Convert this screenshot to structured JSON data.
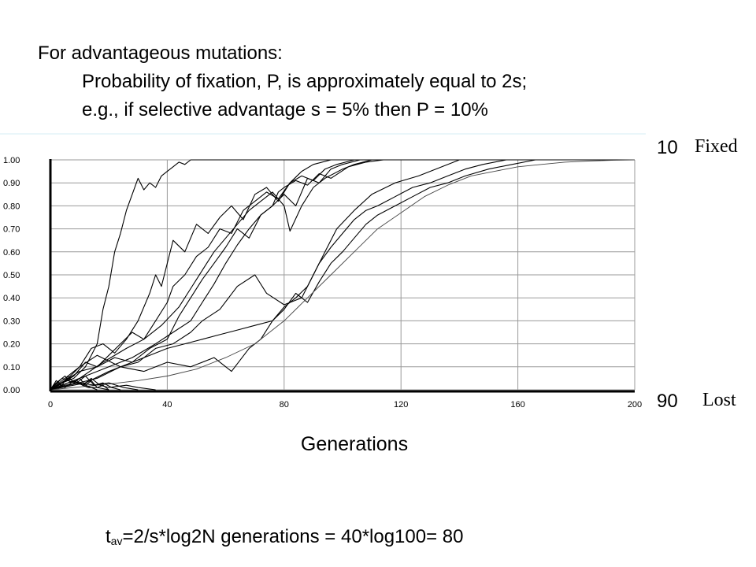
{
  "heading": {
    "line1": "For advantageous  mutations:",
    "line2": "Probability of fixation, P, is approximately equal to 2s;",
    "line3": "e.g., if selective advantage  s = 5% then P = 10%"
  },
  "formula": {
    "t": "t",
    "sub": "av",
    "rest": "=2/s*log2N generations = 40*log100= 80"
  },
  "chart_data": {
    "type": "line",
    "xlabel": "Generations",
    "ylabel": "",
    "xlim": [
      0,
      200
    ],
    "ylim": [
      0,
      1
    ],
    "x_ticks": [
      "0",
      "40",
      "80",
      "120",
      "160",
      "200"
    ],
    "y_ticks": [
      "0.00",
      "0.10",
      "0.20",
      "0.30",
      "0.40",
      "0.50",
      "0.60",
      "0.70",
      "0.80",
      "0.90",
      "1.00"
    ],
    "grid": true,
    "annotations": [
      {
        "count": "10",
        "label": "Fixed"
      },
      {
        "count": "90",
        "label": "Lost"
      }
    ],
    "series": [
      {
        "x": [
          0,
          4,
          8,
          12,
          16,
          18,
          20,
          22,
          24,
          26,
          28,
          30,
          32,
          34,
          36,
          38,
          40,
          42,
          44,
          46,
          48,
          52,
          60,
          80,
          100,
          140,
          200
        ],
        "y": [
          0,
          0.03,
          0.05,
          0.1,
          0.2,
          0.35,
          0.45,
          0.6,
          0.68,
          0.78,
          0.85,
          0.92,
          0.87,
          0.9,
          0.88,
          0.93,
          0.95,
          0.97,
          0.99,
          0.98,
          1,
          1,
          1,
          1,
          1,
          1,
          1
        ]
      },
      {
        "x": [
          0,
          6,
          10,
          14,
          18,
          22,
          26,
          30,
          34,
          36,
          38,
          40,
          42,
          46,
          50,
          54,
          58,
          62,
          66,
          70,
          74,
          78,
          82,
          86,
          90,
          94,
          98,
          104,
          110,
          200
        ],
        "y": [
          0,
          0.05,
          0.1,
          0.18,
          0.2,
          0.16,
          0.22,
          0.3,
          0.42,
          0.5,
          0.45,
          0.55,
          0.65,
          0.6,
          0.72,
          0.68,
          0.75,
          0.8,
          0.74,
          0.85,
          0.88,
          0.82,
          0.9,
          0.93,
          0.91,
          0.96,
          0.98,
          1,
          1,
          1
        ]
      },
      {
        "x": [
          0,
          8,
          12,
          16,
          20,
          24,
          28,
          32,
          36,
          40,
          42,
          46,
          50,
          54,
          58,
          62,
          66,
          70,
          74,
          78,
          82,
          86,
          90,
          96,
          100,
          200
        ],
        "y": [
          0,
          0.06,
          0.12,
          0.1,
          0.15,
          0.2,
          0.25,
          0.22,
          0.3,
          0.38,
          0.45,
          0.5,
          0.58,
          0.62,
          0.7,
          0.68,
          0.78,
          0.82,
          0.86,
          0.83,
          0.9,
          0.95,
          0.98,
          1,
          1,
          1
        ]
      },
      {
        "x": [
          0,
          10,
          16,
          22,
          28,
          34,
          40,
          44,
          48,
          52,
          56,
          60,
          64,
          68,
          72,
          76,
          80,
          84,
          88,
          92,
          96,
          100,
          106,
          200
        ],
        "y": [
          0,
          0.08,
          0.1,
          0.14,
          0.12,
          0.18,
          0.22,
          0.32,
          0.4,
          0.48,
          0.55,
          0.62,
          0.7,
          0.66,
          0.76,
          0.8,
          0.85,
          0.8,
          0.92,
          0.9,
          0.96,
          0.98,
          1,
          1
        ]
      },
      {
        "x": [
          0,
          10,
          18,
          26,
          32,
          38,
          44,
          48,
          52,
          56,
          60,
          64,
          68,
          72,
          76,
          80,
          82,
          86,
          90,
          94,
          100,
          104,
          110,
          200
        ],
        "y": [
          0,
          0.05,
          0.12,
          0.18,
          0.22,
          0.28,
          0.36,
          0.44,
          0.52,
          0.6,
          0.66,
          0.72,
          0.78,
          0.82,
          0.86,
          0.8,
          0.69,
          0.8,
          0.88,
          0.92,
          0.96,
          0.98,
          1,
          1
        ]
      },
      {
        "x": [
          0,
          12,
          20,
          28,
          36,
          42,
          48,
          52,
          56,
          60,
          64,
          68,
          72,
          76,
          78,
          80,
          84,
          88,
          92,
          96,
          102,
          108,
          114,
          200
        ],
        "y": [
          0,
          0.06,
          0.1,
          0.14,
          0.2,
          0.25,
          0.3,
          0.38,
          0.46,
          0.55,
          0.63,
          0.7,
          0.76,
          0.8,
          0.86,
          0.88,
          0.91,
          0.89,
          0.94,
          0.92,
          0.97,
          0.99,
          1,
          1
        ]
      },
      {
        "x": [
          0,
          10,
          16,
          24,
          30,
          36,
          42,
          48,
          52,
          58,
          64,
          70,
          74,
          80,
          86,
          90,
          94,
          98,
          104,
          110,
          118,
          126,
          134,
          140,
          200
        ],
        "y": [
          0,
          0.1,
          0.15,
          0.1,
          0.12,
          0.18,
          0.2,
          0.25,
          0.3,
          0.35,
          0.45,
          0.5,
          0.42,
          0.37,
          0.4,
          0.5,
          0.6,
          0.7,
          0.78,
          0.85,
          0.9,
          0.93,
          0.97,
          1,
          1
        ]
      },
      {
        "x": [
          0,
          12,
          20,
          28,
          34,
          40,
          46,
          52,
          58,
          64,
          70,
          76,
          80,
          84,
          88,
          92,
          96,
          100,
          104,
          108,
          112,
          118,
          124,
          130,
          136,
          142,
          148,
          156,
          200
        ],
        "y": [
          0,
          0.03,
          0.08,
          0.12,
          0.15,
          0.18,
          0.2,
          0.22,
          0.24,
          0.26,
          0.28,
          0.3,
          0.36,
          0.4,
          0.45,
          0.55,
          0.62,
          0.68,
          0.74,
          0.78,
          0.8,
          0.84,
          0.88,
          0.9,
          0.93,
          0.96,
          0.98,
          1,
          1
        ]
      },
      {
        "x": [
          0,
          16,
          24,
          32,
          40,
          48,
          56,
          62,
          68,
          72,
          76,
          80,
          84,
          88,
          92,
          96,
          100,
          104,
          108,
          112,
          118,
          124,
          130,
          136,
          142,
          150,
          158,
          166,
          200
        ],
        "y": [
          0,
          0.05,
          0.1,
          0.08,
          0.12,
          0.1,
          0.14,
          0.08,
          0.18,
          0.22,
          0.3,
          0.35,
          0.42,
          0.38,
          0.47,
          0.55,
          0.6,
          0.66,
          0.72,
          0.76,
          0.8,
          0.84,
          0.88,
          0.9,
          0.93,
          0.96,
          0.98,
          1,
          1
        ]
      },
      {
        "x": [
          0,
          20,
          30,
          40,
          50,
          60,
          70,
          80,
          88,
          96,
          104,
          112,
          120,
          128,
          136,
          144,
          152,
          160,
          168,
          176,
          184,
          192,
          200
        ],
        "y": [
          0,
          0.025,
          0.04,
          0.06,
          0.09,
          0.14,
          0.2,
          0.3,
          0.4,
          0.5,
          0.6,
          0.7,
          0.77,
          0.84,
          0.89,
          0.93,
          0.95,
          0.97,
          0.98,
          0.99,
          0.995,
          0.998,
          1
        ]
      },
      {
        "x": [
          0,
          2,
          4,
          6,
          8,
          10,
          12,
          14,
          16,
          18,
          20
        ],
        "y": [
          0,
          0.04,
          0.02,
          0.06,
          0.03,
          0.05,
          0.02,
          0.04,
          0.01,
          0.02,
          0
        ]
      },
      {
        "x": [
          0,
          3,
          6,
          9,
          12,
          15,
          18,
          21,
          24
        ],
        "y": [
          0,
          0.02,
          0.05,
          0.03,
          0.06,
          0.02,
          0.03,
          0.01,
          0
        ]
      },
      {
        "x": [
          0,
          2,
          5,
          8,
          11,
          14,
          17,
          20,
          26,
          30,
          36
        ],
        "y": [
          0,
          0.03,
          0.01,
          0.04,
          0.02,
          0.05,
          0.02,
          0.01,
          0.02,
          0.01,
          0
        ]
      },
      {
        "x": [
          0,
          4,
          8,
          12,
          16
        ],
        "y": [
          0,
          0.05,
          0.03,
          0.02,
          0
        ]
      },
      {
        "x": [
          0,
          1,
          3,
          5,
          7,
          9,
          11,
          13,
          16,
          20
        ],
        "y": [
          0,
          0.02,
          0.04,
          0.06,
          0.03,
          0.04,
          0.02,
          0.01,
          0.01,
          0
        ]
      },
      {
        "x": [
          0,
          5,
          10,
          15,
          20,
          25,
          30
        ],
        "y": [
          0,
          0.02,
          0.03,
          0.02,
          0.03,
          0.01,
          0
        ]
      }
    ]
  }
}
